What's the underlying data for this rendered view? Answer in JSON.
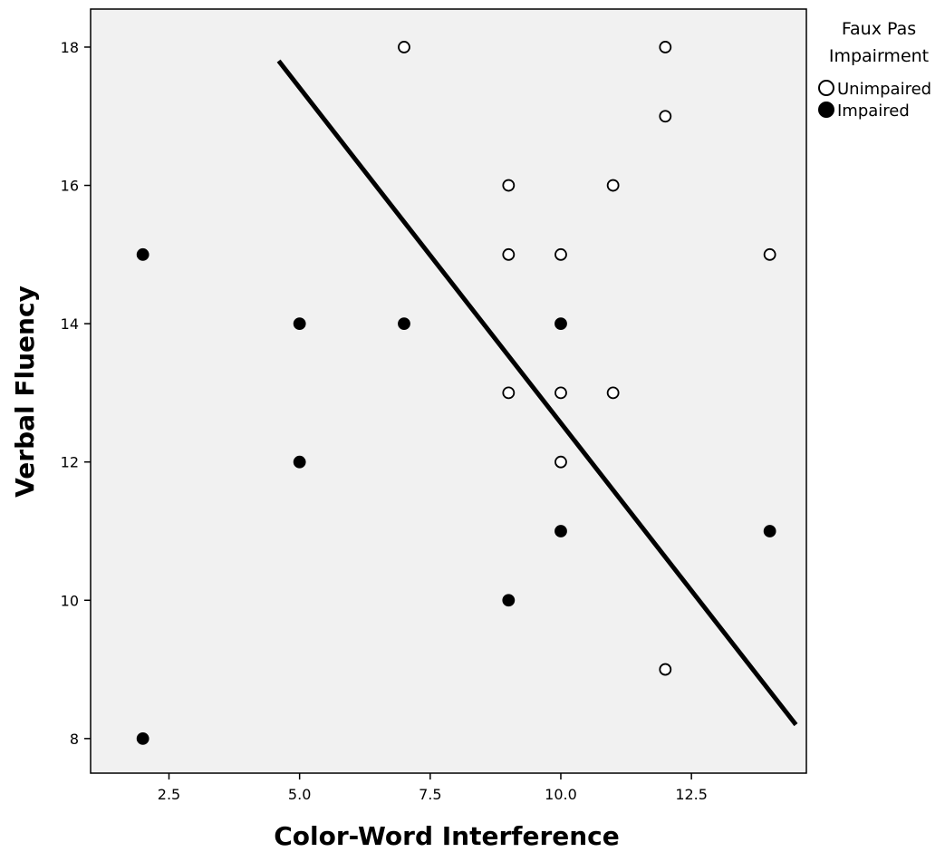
{
  "chart_data": {
    "type": "scatter",
    "xlabel": "Color-Word Interference",
    "ylabel": "Verbal Fluency",
    "xlim": [
      1.0,
      14.7
    ],
    "ylim": [
      7.5,
      18.55
    ],
    "xticks": [
      "2.5",
      "5.0",
      "7.5",
      "10.0",
      "12.5"
    ],
    "xtick_values": [
      2.5,
      5.0,
      7.5,
      10.0,
      12.5
    ],
    "yticks": [
      "8",
      "10",
      "12",
      "14",
      "16",
      "18"
    ],
    "ytick_values": [
      8,
      10,
      12,
      14,
      16,
      18
    ],
    "grid": false,
    "background": "#f1f1f1",
    "legend": {
      "title_line1": "Faux Pas",
      "title_line2": "Impairment",
      "placement": "right",
      "entries": [
        {
          "label": "Unimpaired",
          "marker": "open-circle"
        },
        {
          "label": "Impaired",
          "marker": "filled-circle"
        }
      ]
    },
    "series": [
      {
        "name": "Unimpaired",
        "marker": "open-circle",
        "points": [
          {
            "x": 7,
            "y": 18
          },
          {
            "x": 12,
            "y": 18
          },
          {
            "x": 12,
            "y": 17
          },
          {
            "x": 9,
            "y": 16
          },
          {
            "x": 11,
            "y": 16
          },
          {
            "x": 9,
            "y": 15
          },
          {
            "x": 10,
            "y": 15
          },
          {
            "x": 14,
            "y": 15
          },
          {
            "x": 9,
            "y": 13
          },
          {
            "x": 10,
            "y": 13
          },
          {
            "x": 11,
            "y": 13
          },
          {
            "x": 10,
            "y": 12
          },
          {
            "x": 12,
            "y": 9
          }
        ]
      },
      {
        "name": "Impaired",
        "marker": "filled-circle",
        "points": [
          {
            "x": 2,
            "y": 15
          },
          {
            "x": 5,
            "y": 14
          },
          {
            "x": 7,
            "y": 14
          },
          {
            "x": 10,
            "y": 14
          },
          {
            "x": 5,
            "y": 12
          },
          {
            "x": 10,
            "y": 11
          },
          {
            "x": 14,
            "y": 11
          },
          {
            "x": 9,
            "y": 10
          },
          {
            "x": 2,
            "y": 8
          }
        ]
      }
    ],
    "fit_line": {
      "x1": 4.6,
      "y1": 17.8,
      "x2": 14.5,
      "y2": 8.2
    },
    "colors": {
      "line": "#000000",
      "marker": "#000000",
      "marker_open_fill": "#ffffff"
    }
  }
}
